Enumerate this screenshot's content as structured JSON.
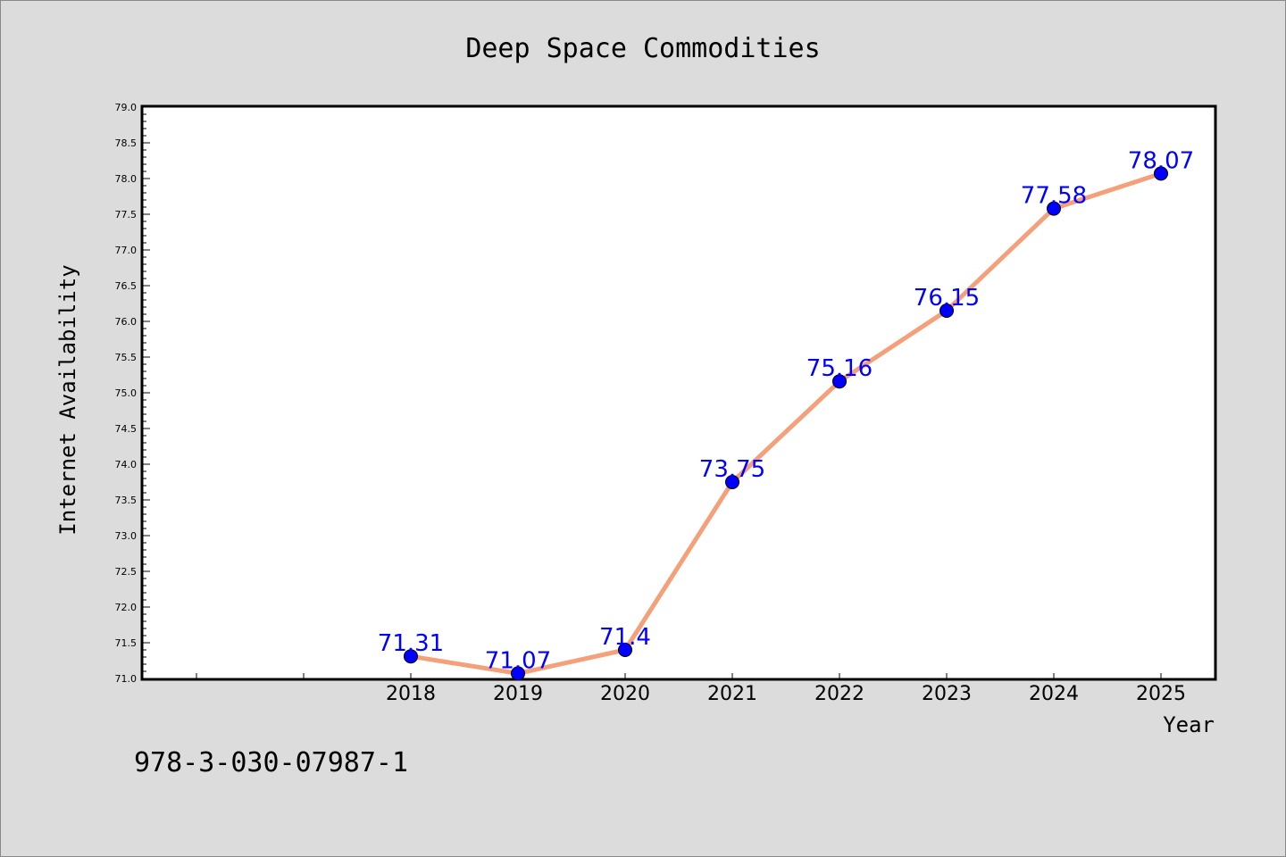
{
  "chart_data": {
    "type": "line",
    "title": "Deep Space Commodities",
    "xlabel": "Year",
    "ylabel": "Internet Availability",
    "categories": [
      "2018",
      "2019",
      "2020",
      "2021",
      "2022",
      "2023",
      "2024",
      "2025"
    ],
    "x_slot_count": 10,
    "x_first_slot_index": 2,
    "series": [
      {
        "values": [
          71.31,
          71.07,
          71.4,
          73.75,
          75.16,
          76.15,
          77.58,
          78.07
        ],
        "labels": [
          "71.31",
          "71.07",
          "71.4",
          "73.75",
          "75.16",
          "76.15",
          "77.58",
          "78.07"
        ],
        "line_color": "#f4a07a",
        "marker_color": "#0000ff",
        "marker_edge_color": "#000000",
        "label_color": "#0000ff"
      }
    ],
    "ylim": [
      71.0,
      79.0
    ],
    "y_major_step": 0.5,
    "y_ticks": [
      "71.0",
      "71.5",
      "72.0",
      "72.5",
      "73.0",
      "73.5",
      "74.0",
      "74.5",
      "75.0",
      "75.5",
      "76.0",
      "76.5",
      "77.0",
      "77.5",
      "78.0",
      "78.5",
      "79.0"
    ],
    "grid": false,
    "legend": "none",
    "plot_background": "#ffffff",
    "figure_background": "#dcdcdc"
  },
  "footer": {
    "isbn": "978-3-030-07987-1"
  }
}
